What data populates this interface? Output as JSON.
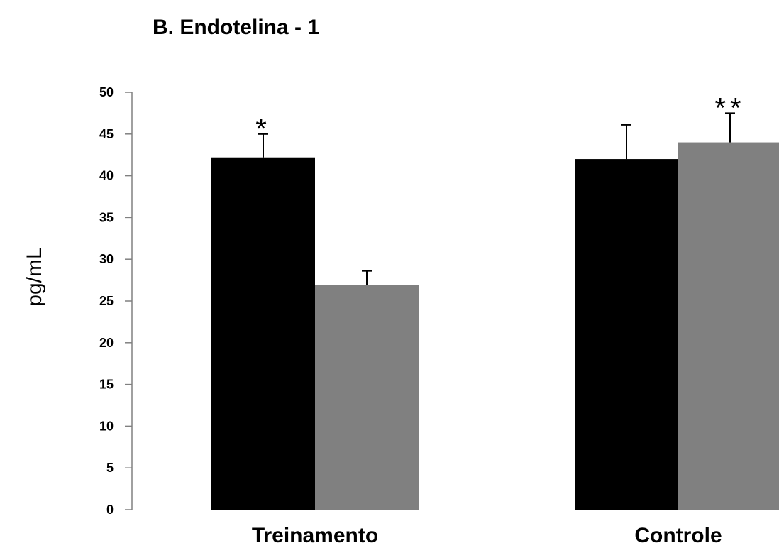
{
  "chart_data": {
    "type": "bar",
    "title": "B. Endotelina - 1",
    "xlabel": "",
    "ylabel": "pg/mL",
    "ylim": [
      0,
      50
    ],
    "yticks": [
      0,
      5,
      10,
      15,
      20,
      25,
      30,
      35,
      40,
      45,
      50
    ],
    "grid": false,
    "categories": [
      "Treinamento",
      "Controle"
    ],
    "series": [
      {
        "color": "#000000",
        "values": [
          42.2,
          42.0
        ],
        "errors": [
          2.8,
          4.1
        ]
      },
      {
        "color": "#808080",
        "values": [
          26.9,
          44.0
        ],
        "errors": [
          1.7,
          3.5
        ]
      }
    ],
    "annotations": [
      {
        "category": "Treinamento",
        "series": 0,
        "text": "*"
      },
      {
        "category": "Controle",
        "series": 1,
        "text": "**"
      }
    ]
  }
}
